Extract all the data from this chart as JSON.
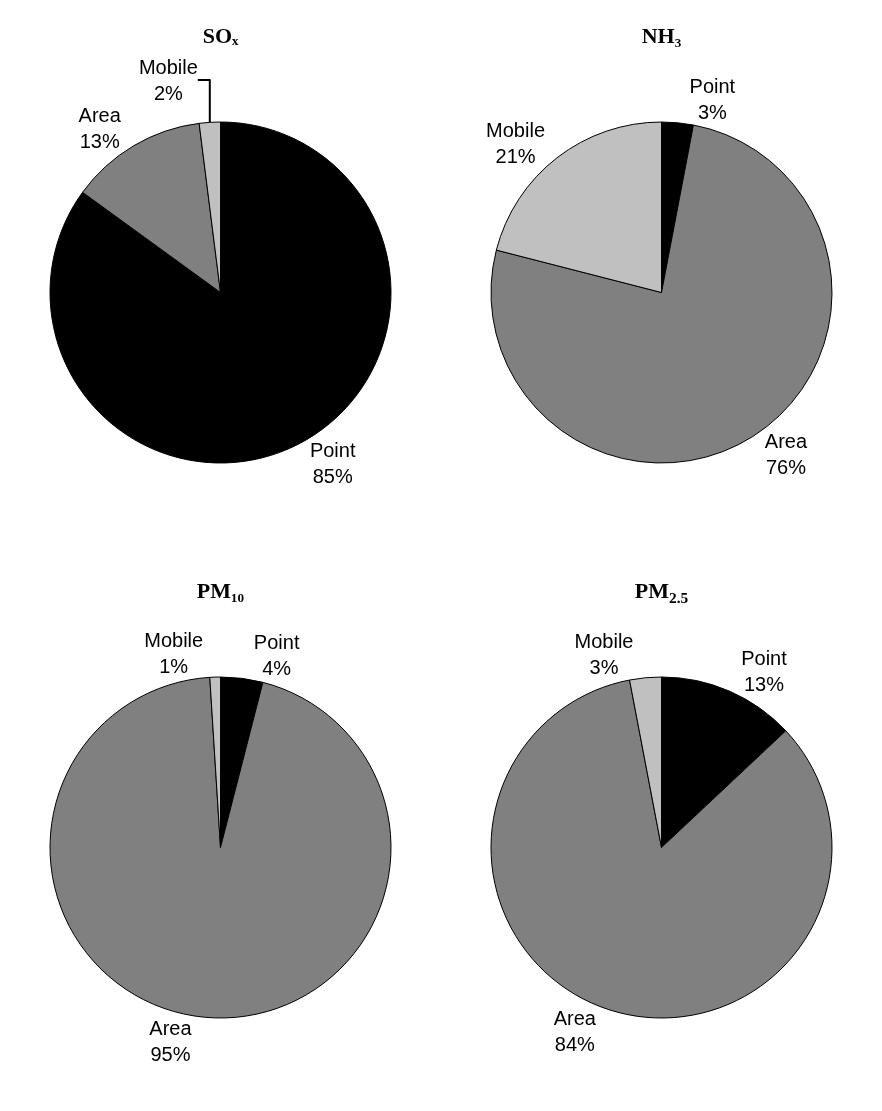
{
  "chart_data": [
    {
      "type": "pie",
      "title": "SOₓ",
      "categories": [
        "Point",
        "Area",
        "Mobile"
      ],
      "values": [
        85,
        13,
        2
      ],
      "value_labels": [
        "85%",
        "13%",
        "2%"
      ],
      "colors": [
        "#000000",
        "#808080",
        "#c0c0c0"
      ],
      "legend": false
    },
    {
      "type": "pie",
      "title": "NH₃",
      "categories": [
        "Point",
        "Area",
        "Mobile"
      ],
      "values": [
        3,
        76,
        21
      ],
      "value_labels": [
        "3%",
        "76%",
        "21%"
      ],
      "colors": [
        "#000000",
        "#808080",
        "#c0c0c0"
      ],
      "legend": false
    },
    {
      "type": "pie",
      "title": "PM₁₀",
      "categories": [
        "Point",
        "Area",
        "Mobile"
      ],
      "values": [
        4,
        95,
        1
      ],
      "value_labels": [
        "4%",
        "95%",
        "1%"
      ],
      "colors": [
        "#000000",
        "#808080",
        "#c0c0c0"
      ],
      "legend": false
    },
    {
      "type": "pie",
      "title": "PM$_{2.5}$",
      "categories": [
        "Point",
        "Area",
        "Mobile"
      ],
      "values": [
        13,
        84,
        3
      ],
      "value_labels": [
        "13%",
        "84%",
        "3%"
      ],
      "colors": [
        "#000000",
        "#808080",
        "#c0c0c0"
      ],
      "legend": false
    }
  ]
}
